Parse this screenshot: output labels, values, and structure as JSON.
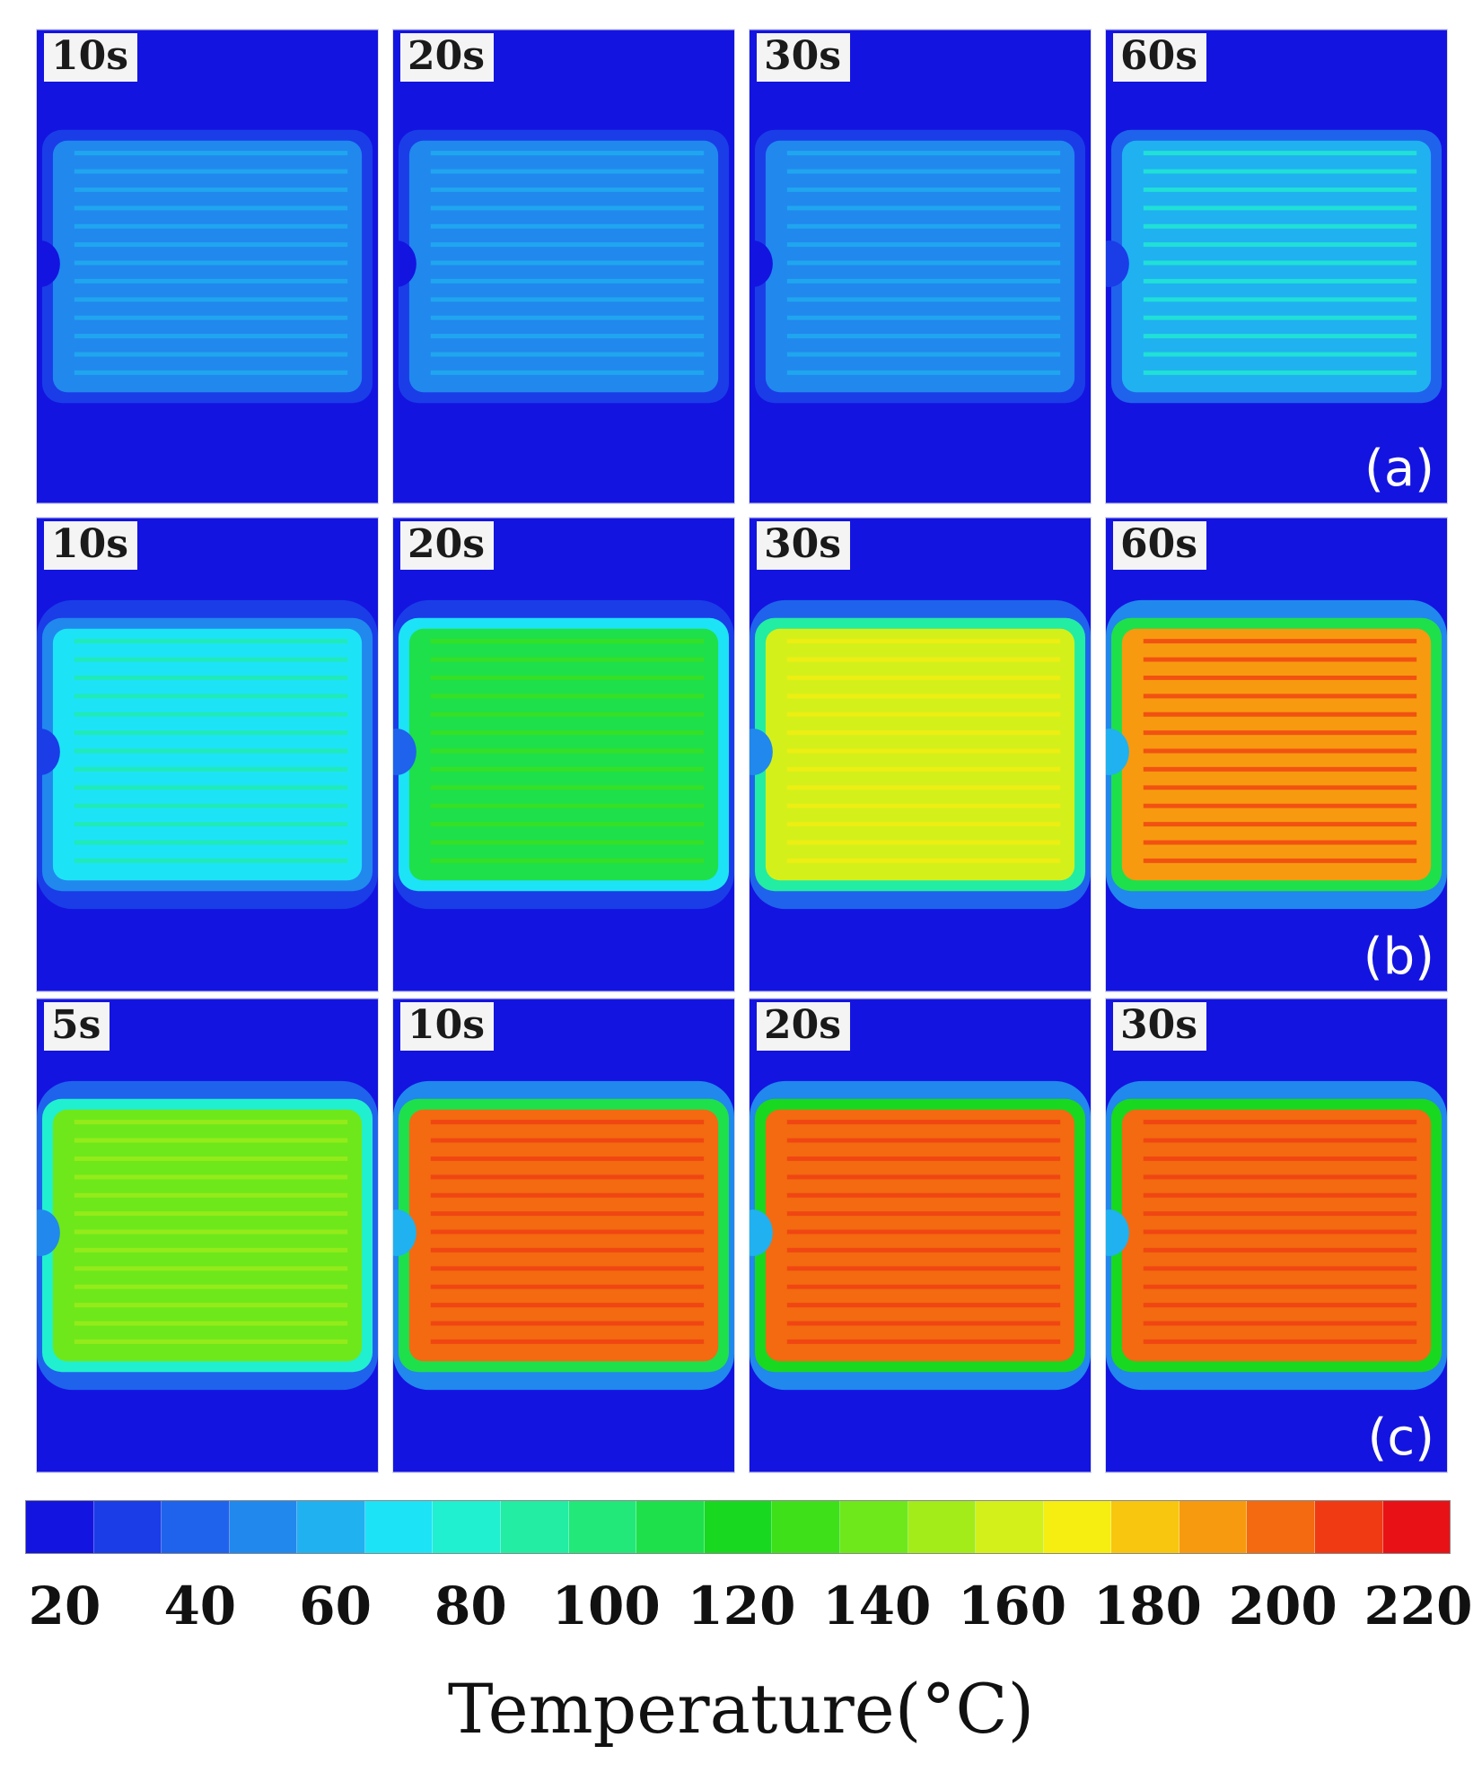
{
  "figure": {
    "rows": [
      {
        "label": "(a)",
        "panels": [
          {
            "time": "10s",
            "temp_c": 50
          },
          {
            "time": "20s",
            "temp_c": 52
          },
          {
            "time": "30s",
            "temp_c": 54
          },
          {
            "time": "60s",
            "temp_c": 66
          }
        ]
      },
      {
        "label": "(b)",
        "panels": [
          {
            "time": "10s",
            "temp_c": 78
          },
          {
            "time": "20s",
            "temp_c": 118
          },
          {
            "time": "30s",
            "temp_c": 160
          },
          {
            "time": "60s",
            "temp_c": 198
          }
        ]
      },
      {
        "label": "(c)",
        "panels": [
          {
            "time": "5s",
            "temp_c": 145
          },
          {
            "time": "10s",
            "temp_c": 200
          },
          {
            "time": "20s",
            "temp_c": 205
          },
          {
            "time": "30s",
            "temp_c": 205
          }
        ]
      }
    ],
    "colorbar": {
      "ticks": [
        "20",
        "40",
        "60",
        "80",
        "100",
        "120",
        "140",
        "160",
        "180",
        "200",
        "220"
      ],
      "title": "Temperature(°C)",
      "min": 20,
      "max": 230,
      "colors": [
        "#1414e0",
        "#1a3de8",
        "#1f63ec",
        "#2188ee",
        "#20b1f0",
        "#1de3f7",
        "#20f0cf",
        "#22eda3",
        "#22e879",
        "#1ee04a",
        "#18d820",
        "#3ee01a",
        "#6ee81a",
        "#a3ec1a",
        "#d4f01a",
        "#f6ee10",
        "#f8c60f",
        "#f79a0f",
        "#f36a10",
        "#ef3a14",
        "#e81216"
      ]
    }
  }
}
